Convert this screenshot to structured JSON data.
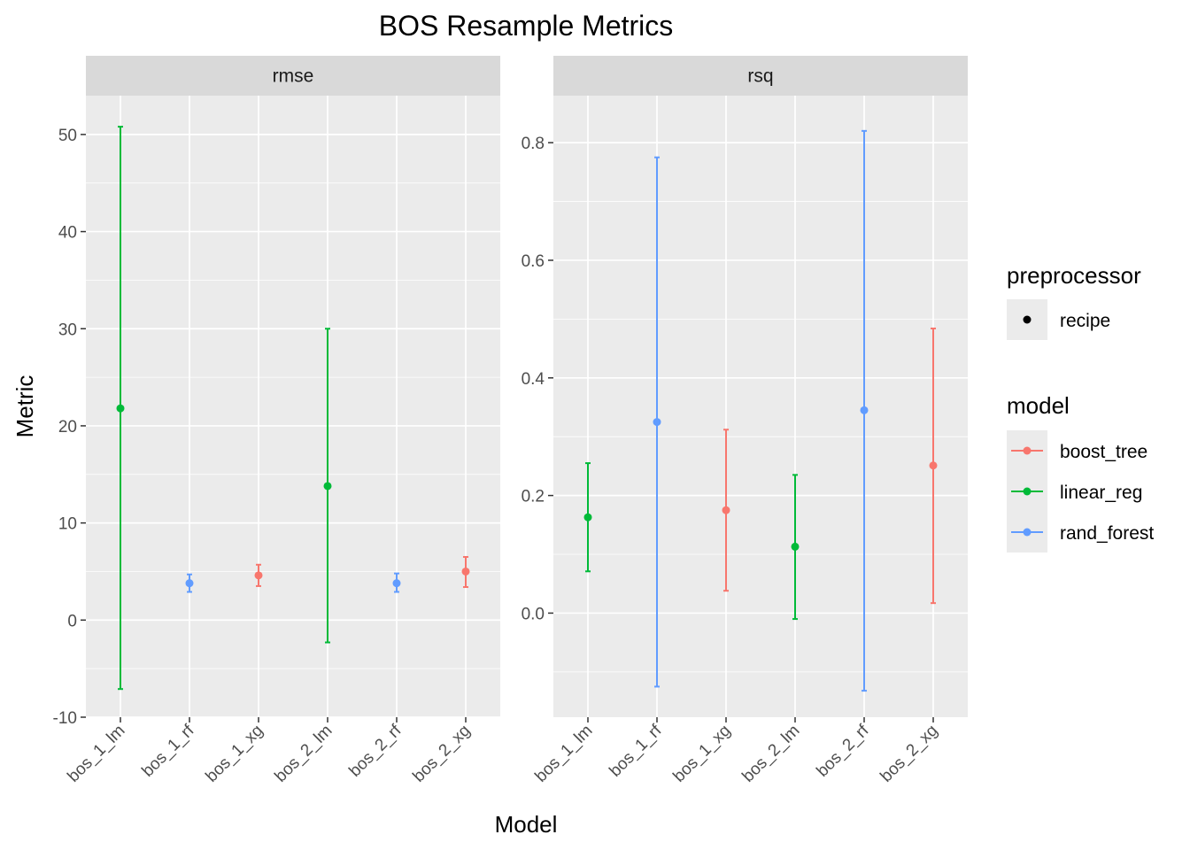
{
  "chart_data": {
    "type": "errorbar",
    "title": "BOS Resample Metrics",
    "xlabel": "Model",
    "ylabel": "Metric",
    "categories": [
      "bos_1_lm",
      "bos_1_rf",
      "bos_1_xg",
      "bos_2_lm",
      "bos_2_rf",
      "bos_2_xg"
    ],
    "category_model": [
      "linear_reg",
      "rand_forest",
      "boost_tree",
      "linear_reg",
      "rand_forest",
      "boost_tree"
    ],
    "grid": true,
    "legend_position": "right",
    "legends": [
      {
        "title": "preprocessor",
        "entries": [
          {
            "label": "recipe",
            "color": "#000000"
          }
        ]
      },
      {
        "title": "model",
        "entries": [
          {
            "label": "boost_tree",
            "color": "#F8766D"
          },
          {
            "label": "linear_reg",
            "color": "#00BA38"
          },
          {
            "label": "rand_forest",
            "color": "#619CFF"
          }
        ]
      }
    ],
    "colors": {
      "boost_tree": "#F8766D",
      "linear_reg": "#00BA38",
      "rand_forest": "#619CFF"
    },
    "facets": [
      {
        "strip": "rmse",
        "ylim": [
          -10,
          54
        ],
        "yticks": [
          -10,
          0,
          10,
          20,
          30,
          40,
          50
        ],
        "points": [
          {
            "mean": 21.8,
            "lower": -7.1,
            "upper": 50.8
          },
          {
            "mean": 3.8,
            "lower": 2.9,
            "upper": 4.7
          },
          {
            "mean": 4.6,
            "lower": 3.5,
            "upper": 5.7
          },
          {
            "mean": 13.8,
            "lower": -2.3,
            "upper": 30.0
          },
          {
            "mean": 3.8,
            "lower": 2.9,
            "upper": 4.8
          },
          {
            "mean": 5.0,
            "lower": 3.4,
            "upper": 6.5
          }
        ]
      },
      {
        "strip": "rsq",
        "ylim": [
          -0.177,
          0.88
        ],
        "yticks": [
          0.0,
          0.2,
          0.4,
          0.6,
          0.8
        ],
        "tick_format": "0.0",
        "points": [
          {
            "mean": 0.163,
            "lower": 0.071,
            "upper": 0.255
          },
          {
            "mean": 0.325,
            "lower": -0.125,
            "upper": 0.775
          },
          {
            "mean": 0.175,
            "lower": 0.038,
            "upper": 0.312
          },
          {
            "mean": 0.113,
            "lower": -0.01,
            "upper": 0.235
          },
          {
            "mean": 0.345,
            "lower": -0.132,
            "upper": 0.82
          },
          {
            "mean": 0.251,
            "lower": 0.017,
            "upper": 0.484
          }
        ]
      }
    ]
  }
}
